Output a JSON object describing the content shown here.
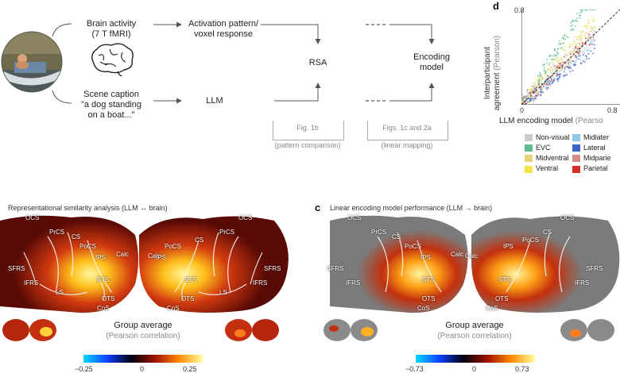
{
  "flow": {
    "brain_activity": "Brain activity",
    "fmri": "(7 T fMRI)",
    "activation_1": "Activation pattern/",
    "activation_2": "voxel response",
    "scene_caption": "Scene caption",
    "caption_1": "\"a dog standing",
    "caption_2": "on a boat...\"",
    "llm": "LLM",
    "rsa": "RSA",
    "encoding_1": "Encoding",
    "encoding_2": "model",
    "fig1b": "Fig. 1b",
    "pattern_comparison": "(pattern comparison)",
    "figs1c2a": "Figs. 1c and 2a",
    "linear_mapping": "(linear mapping)"
  },
  "panel_b": {
    "title": "Representational similarity analysis  (LLM ↔ brain)",
    "group_average": "Group average",
    "pearson": "(Pearson correlation)",
    "cbar_min": "−0.25",
    "cbar_mid": "0",
    "cbar_max": "0.25",
    "labels": [
      "OCS",
      "PrCS",
      "CS",
      "PoCS",
      "IPS",
      "SFRS",
      "IFRS",
      "STS",
      "LS",
      "OTS",
      "CoS",
      "Calc",
      "Calc",
      "IPS",
      "PoCS",
      "CS",
      "PrCS",
      "OCS",
      "SFRS",
      "IFRS",
      "STS",
      "LS",
      "OTS",
      "CoS"
    ]
  },
  "panel_c": {
    "letter": "c",
    "title": "Linear encoding model performance (LLM → brain)",
    "group_average": "Group average",
    "pearson": "(Pearson correlation)",
    "cbar_min": "−0.73",
    "cbar_mid": "0",
    "cbar_max": "0.73",
    "labels": [
      "OCS",
      "PrCS",
      "CS",
      "PoCS",
      "IPS",
      "SFRS",
      "IFRS",
      "STS",
      "OTS",
      "CoS",
      "Calc",
      "Calc",
      "IPS",
      "PoCS",
      "CS",
      "OCS",
      "STS",
      "OTS",
      "CoS",
      "IFRS",
      "SFRS"
    ]
  },
  "panel_d": {
    "letter": "d",
    "ylabel_1": "Interparticipant",
    "ylabel_2": "agreement",
    "ylabel_unit": "(Pearson)",
    "xlabel": "LLM encoding model",
    "xlabel_unit": "(Pearso",
    "y_tick_top": "0.8",
    "x_tick_left": "0",
    "x_tick_right": "0.8",
    "legend": [
      {
        "label": "Non-visual",
        "color": "#cccccc"
      },
      {
        "label": "Midlater",
        "color": "#8ec6e8"
      },
      {
        "label": "EVC",
        "color": "#5fbf8f"
      },
      {
        "label": "Lateral",
        "color": "#3d64c8"
      },
      {
        "label": "Midventral",
        "color": "#e8d27a"
      },
      {
        "label": "Midparie",
        "color": "#d98a8a"
      },
      {
        "label": "Ventral",
        "color": "#f2e64a"
      },
      {
        "label": "Parietal",
        "color": "#d6302b"
      }
    ]
  }
}
